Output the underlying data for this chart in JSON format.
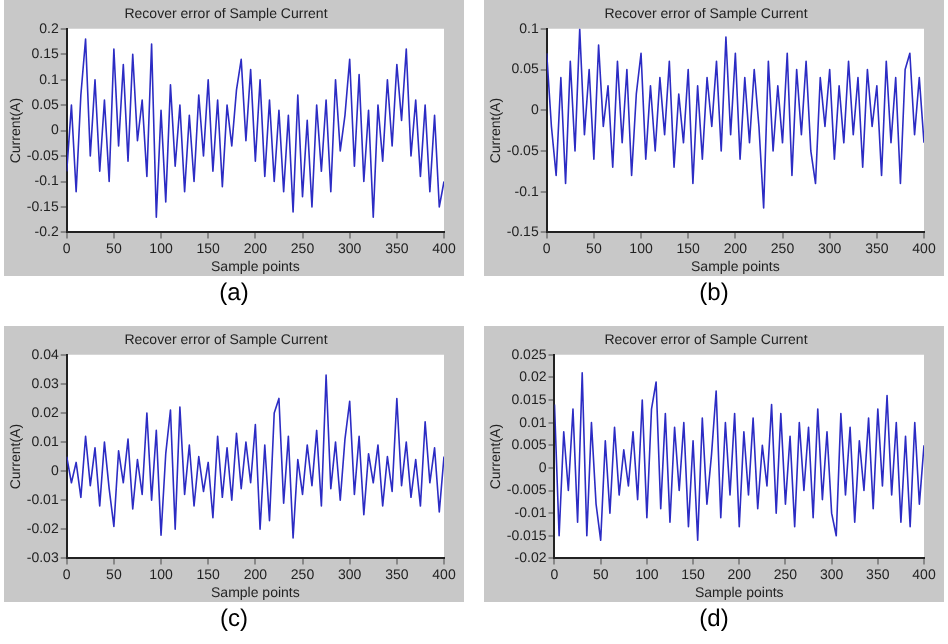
{
  "chart_data": [
    {
      "type": "line",
      "title": "Recover error of Sample Current",
      "xlabel": "Sample points",
      "ylabel": "Current(A)",
      "color": "#2c2cc4",
      "annotations": [
        "(a)"
      ],
      "x": [
        0,
        5,
        10,
        15,
        20,
        25,
        30,
        35,
        40,
        45,
        50,
        55,
        60,
        65,
        70,
        75,
        80,
        85,
        90,
        95,
        100,
        105,
        110,
        115,
        120,
        125,
        130,
        135,
        140,
        145,
        150,
        155,
        160,
        165,
        170,
        175,
        180,
        185,
        190,
        195,
        200,
        205,
        210,
        215,
        220,
        225,
        230,
        235,
        240,
        245,
        250,
        255,
        260,
        265,
        270,
        275,
        280,
        285,
        290,
        295,
        300,
        305,
        310,
        315,
        320,
        325,
        330,
        335,
        340,
        345,
        350,
        355,
        360,
        365,
        370,
        375,
        380,
        385,
        390,
        395,
        400
      ],
      "values": [
        -0.08,
        0.05,
        -0.12,
        0.07,
        0.18,
        -0.05,
        0.1,
        -0.08,
        0.06,
        -0.1,
        0.16,
        -0.03,
        0.13,
        -0.06,
        0.15,
        -0.02,
        0.06,
        -0.09,
        0.17,
        -0.17,
        0.04,
        -0.14,
        0.09,
        -0.07,
        0.05,
        -0.12,
        0.03,
        -0.1,
        0.07,
        -0.05,
        0.1,
        -0.08,
        0.06,
        -0.11,
        0.05,
        -0.03,
        0.08,
        0.14,
        -0.02,
        0.12,
        -0.06,
        0.1,
        -0.09,
        0.06,
        -0.1,
        0.04,
        -0.12,
        0.03,
        -0.16,
        0.07,
        -0.13,
        0.02,
        -0.15,
        0.05,
        -0.08,
        0.06,
        -0.12,
        0.1,
        -0.04,
        0.03,
        0.14,
        -0.07,
        0.11,
        -0.1,
        0.04,
        -0.17,
        0.05,
        -0.06,
        0.1,
        -0.03,
        0.13,
        0.02,
        0.16,
        -0.05,
        0.06,
        -0.09,
        0.05,
        -0.12,
        0.03,
        -0.15,
        -0.1
      ],
      "xlim": [
        0,
        400
      ],
      "xticks": [
        0,
        50,
        100,
        150,
        200,
        250,
        300,
        350,
        400
      ],
      "ylim": [
        -0.2,
        0.2
      ],
      "yticks": [
        -0.2,
        -0.15,
        -0.1,
        -0.05,
        0,
        0.05,
        0.1,
        0.15,
        0.2
      ]
    },
    {
      "type": "line",
      "title": "Recover error of Sample Current",
      "xlabel": "Sample points",
      "ylabel": "Current(A)",
      "color": "#2c2cc4",
      "annotations": [
        "(b)"
      ],
      "x": [
        0,
        5,
        10,
        15,
        20,
        25,
        30,
        35,
        40,
        45,
        50,
        55,
        60,
        65,
        70,
        75,
        80,
        85,
        90,
        95,
        100,
        105,
        110,
        115,
        120,
        125,
        130,
        135,
        140,
        145,
        150,
        155,
        160,
        165,
        170,
        175,
        180,
        185,
        190,
        195,
        200,
        205,
        210,
        215,
        220,
        225,
        230,
        235,
        240,
        245,
        250,
        255,
        260,
        265,
        270,
        275,
        280,
        285,
        290,
        295,
        300,
        305,
        310,
        315,
        320,
        325,
        330,
        335,
        340,
        345,
        350,
        355,
        360,
        365,
        370,
        375,
        380,
        385,
        390,
        395,
        400
      ],
      "values": [
        0.07,
        -0.02,
        -0.08,
        0.04,
        -0.09,
        0.06,
        -0.05,
        0.1,
        -0.03,
        0.05,
        -0.06,
        0.08,
        -0.02,
        0.03,
        -0.07,
        0.06,
        -0.04,
        0.05,
        -0.08,
        0.02,
        0.07,
        -0.06,
        0.03,
        -0.05,
        0.04,
        -0.03,
        0.06,
        -0.07,
        0.02,
        -0.04,
        0.05,
        -0.09,
        0.03,
        -0.06,
        0.04,
        -0.02,
        0.06,
        -0.05,
        0.09,
        -0.03,
        0.07,
        -0.06,
        0.04,
        -0.04,
        0.05,
        -0.02,
        -0.12,
        0.06,
        -0.05,
        0.03,
        -0.04,
        0.07,
        -0.08,
        0.05,
        -0.03,
        0.06,
        -0.05,
        -0.09,
        0.04,
        -0.02,
        0.05,
        -0.06,
        0.03,
        -0.04,
        0.06,
        -0.03,
        0.04,
        -0.07,
        0.05,
        -0.02,
        0.03,
        -0.08,
        0.06,
        -0.04,
        0.04,
        -0.09,
        0.05,
        0.07,
        -0.03,
        0.04,
        -0.04
      ],
      "xlim": [
        0,
        400
      ],
      "xticks": [
        0,
        50,
        100,
        150,
        200,
        250,
        300,
        350,
        400
      ],
      "ylim": [
        -0.15,
        0.1
      ],
      "yticks": [
        -0.15,
        -0.1,
        -0.05,
        0,
        0.05,
        0.1
      ]
    },
    {
      "type": "line",
      "title": "Recover error of Sample Current",
      "xlabel": "Sample points",
      "ylabel": "Current(A)",
      "color": "#2c2cc4",
      "annotations": [
        "(c)"
      ],
      "x": [
        0,
        5,
        10,
        15,
        20,
        25,
        30,
        35,
        40,
        45,
        50,
        55,
        60,
        65,
        70,
        75,
        80,
        85,
        90,
        95,
        100,
        105,
        110,
        115,
        120,
        125,
        130,
        135,
        140,
        145,
        150,
        155,
        160,
        165,
        170,
        175,
        180,
        185,
        190,
        195,
        200,
        205,
        210,
        215,
        220,
        225,
        230,
        235,
        240,
        245,
        250,
        255,
        260,
        265,
        270,
        275,
        280,
        285,
        290,
        295,
        300,
        305,
        310,
        315,
        320,
        325,
        330,
        335,
        340,
        345,
        350,
        355,
        360,
        365,
        370,
        375,
        380,
        385,
        390,
        395,
        400
      ],
      "values": [
        0.005,
        -0.004,
        0.003,
        -0.009,
        0.012,
        -0.005,
        0.008,
        -0.012,
        0.01,
        -0.006,
        -0.019,
        0.007,
        -0.004,
        0.011,
        -0.013,
        0.004,
        -0.008,
        0.02,
        -0.01,
        0.014,
        -0.022,
        0.006,
        0.021,
        -0.02,
        0.022,
        -0.008,
        0.009,
        -0.012,
        0.005,
        -0.007,
        0.003,
        -0.016,
        0.012,
        -0.009,
        0.008,
        -0.01,
        0.013,
        -0.006,
        0.01,
        -0.004,
        0.016,
        -0.02,
        0.009,
        -0.017,
        0.02,
        0.025,
        -0.011,
        0.012,
        -0.023,
        0.004,
        -0.008,
        0.009,
        -0.005,
        0.014,
        -0.012,
        0.033,
        -0.006,
        0.01,
        -0.01,
        0.011,
        0.024,
        -0.008,
        0.012,
        -0.015,
        0.006,
        -0.004,
        0.009,
        -0.012,
        0.005,
        -0.007,
        0.025,
        -0.005,
        0.01,
        -0.009,
        0.004,
        -0.012,
        0.017,
        -0.004,
        0.008,
        -0.014,
        0.005
      ],
      "xlim": [
        0,
        400
      ],
      "xticks": [
        0,
        50,
        100,
        150,
        200,
        250,
        300,
        350,
        400
      ],
      "ylim": [
        -0.03,
        0.04
      ],
      "yticks": [
        -0.03,
        -0.02,
        -0.01,
        0,
        0.01,
        0.02,
        0.03,
        0.04
      ]
    },
    {
      "type": "line",
      "title": "Recover error of Sample Current",
      "xlabel": "Sample points",
      "ylabel": "Current(A)",
      "color": "#2c2cc4",
      "annotations": [
        "(d)"
      ],
      "x": [
        0,
        5,
        10,
        15,
        20,
        25,
        30,
        35,
        40,
        45,
        50,
        55,
        60,
        65,
        70,
        75,
        80,
        85,
        90,
        95,
        100,
        105,
        110,
        115,
        120,
        125,
        130,
        135,
        140,
        145,
        150,
        155,
        160,
        165,
        170,
        175,
        180,
        185,
        190,
        195,
        200,
        205,
        210,
        215,
        220,
        225,
        230,
        235,
        240,
        245,
        250,
        255,
        260,
        265,
        270,
        275,
        280,
        285,
        290,
        295,
        300,
        305,
        310,
        315,
        320,
        325,
        330,
        335,
        340,
        345,
        350,
        355,
        360,
        365,
        370,
        375,
        380,
        385,
        390,
        395,
        400
      ],
      "values": [
        0.014,
        -0.015,
        0.008,
        -0.005,
        0.013,
        -0.012,
        0.021,
        -0.015,
        0.01,
        -0.008,
        -0.016,
        0.006,
        -0.01,
        0.009,
        -0.006,
        0.004,
        -0.004,
        0.008,
        -0.007,
        0.015,
        -0.011,
        0.013,
        0.019,
        -0.009,
        0.012,
        -0.012,
        0.009,
        -0.005,
        0.01,
        -0.013,
        0.006,
        -0.016,
        0.011,
        -0.008,
        0.003,
        0.017,
        -0.011,
        0.01,
        -0.006,
        0.012,
        -0.013,
        0.008,
        -0.006,
        0.011,
        -0.009,
        0.005,
        -0.004,
        0.014,
        -0.01,
        0.012,
        -0.008,
        0.007,
        -0.013,
        0.01,
        -0.005,
        0.009,
        -0.011,
        0.013,
        -0.007,
        0.008,
        -0.01,
        -0.015,
        0.012,
        -0.006,
        0.009,
        -0.012,
        0.006,
        -0.005,
        0.011,
        -0.009,
        0.013,
        -0.004,
        0.016,
        -0.006,
        0.01,
        -0.012,
        0.007,
        -0.013,
        0.01,
        -0.008,
        0.005
      ],
      "xlim": [
        0,
        400
      ],
      "xticks": [
        0,
        50,
        100,
        150,
        200,
        250,
        300,
        350,
        400
      ],
      "ylim": [
        -0.02,
        0.025
      ],
      "yticks": [
        -0.02,
        -0.015,
        -0.01,
        -0.005,
        0,
        0.005,
        0.01,
        0.015,
        0.02,
        0.025
      ]
    }
  ]
}
